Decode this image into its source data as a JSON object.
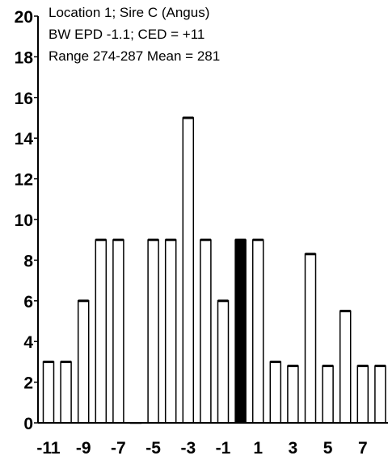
{
  "chart_data": {
    "type": "bar",
    "annotations": [
      "Location 1; Sire C (Angus)",
      "BW EPD -1.1;  CED = +11",
      "Range 274-287  Mean = 281"
    ],
    "x": [
      -11,
      -10,
      -9,
      -8,
      -7,
      -6,
      -5,
      -4,
      -3,
      -2,
      -1,
      0,
      1,
      2,
      3,
      4,
      5,
      6,
      7,
      8
    ],
    "values": [
      3,
      3,
      6,
      9,
      9,
      0,
      9,
      9,
      15,
      9,
      6,
      9,
      9,
      3,
      2.8,
      8.3,
      2.8,
      5.5,
      2.8,
      2.8
    ],
    "highlight_x": 0,
    "x_tick_labels": [
      "-11",
      "-9",
      "-7",
      "-5",
      "-3",
      "-1",
      "1",
      "3",
      "5",
      "7"
    ],
    "y_tick_labels": [
      "0",
      "2",
      "4",
      "6",
      "8",
      "10",
      "12",
      "14",
      "16",
      "18",
      "20"
    ],
    "ylim": [
      0,
      20
    ],
    "xlabel": "",
    "ylabel": "",
    "grid": false,
    "colors": {
      "bar_fill": "#ffffff",
      "highlight_fill": "#000000",
      "stroke": "#000000"
    }
  }
}
